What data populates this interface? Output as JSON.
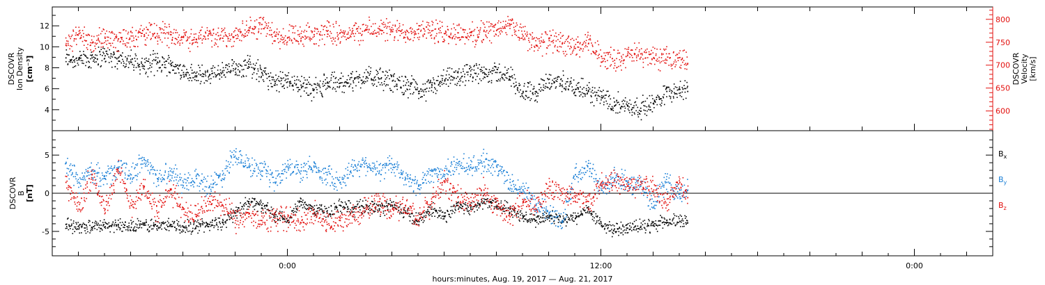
{
  "chart_data": [
    {
      "type": "scatter",
      "panel": "top",
      "x_unit": "hours since 2017-08-19 15:00",
      "xlim": [
        -9,
        27
      ],
      "x_ticks": [
        {
          "x": 0,
          "label": "0:00"
        },
        {
          "x": 12,
          "label": "12:00"
        },
        {
          "x": 24,
          "label": "0:00"
        }
      ],
      "ylabel": [
        "DSCOVR",
        "Ion Density",
        "[cm⁻³]"
      ],
      "ylim": [
        2,
        13.8
      ],
      "y_ticks": [
        4,
        6,
        8,
        10,
        12
      ],
      "y2label": [
        "DSCOVR",
        "Velocity",
        "[km/s]"
      ],
      "y2lim": [
        557,
        827
      ],
      "y2_ticks": [
        600,
        650,
        700,
        750,
        800
      ],
      "series": [
        {
          "axis": "left",
          "color": "#000000",
          "marker": "dot",
          "points": [
            [
              -8.5,
              9.0
            ],
            [
              -8.0,
              8.8
            ],
            [
              -7.5,
              9.0
            ],
            [
              -7.0,
              9.2
            ],
            [
              -6.5,
              9.0
            ],
            [
              -6.0,
              8.6
            ],
            [
              -5.5,
              8.2
            ],
            [
              -5.0,
              8.6
            ],
            [
              -4.5,
              8.4
            ],
            [
              -4.0,
              7.6
            ],
            [
              -3.5,
              7.2
            ],
            [
              -3.0,
              7.4
            ],
            [
              -2.5,
              7.6
            ],
            [
              -2.0,
              8.0
            ],
            [
              -1.5,
              8.4
            ],
            [
              -1.0,
              7.6
            ],
            [
              -0.5,
              6.4
            ],
            [
              0.0,
              7.0
            ],
            [
              0.5,
              6.4
            ],
            [
              1.0,
              6.0
            ],
            [
              1.5,
              6.6
            ],
            [
              2.0,
              6.6
            ],
            [
              2.5,
              6.8
            ],
            [
              3.0,
              7.2
            ],
            [
              3.5,
              7.0
            ],
            [
              4.0,
              6.8
            ],
            [
              4.5,
              6.4
            ],
            [
              5.0,
              5.8
            ],
            [
              5.5,
              6.2
            ],
            [
              6.0,
              6.8
            ],
            [
              6.5,
              7.2
            ],
            [
              7.0,
              7.4
            ],
            [
              7.5,
              7.6
            ],
            [
              8.0,
              7.6
            ],
            [
              8.5,
              7.2
            ],
            [
              9.0,
              5.8
            ],
            [
              9.5,
              5.8
            ],
            [
              10.0,
              6.6
            ],
            [
              10.5,
              6.8
            ],
            [
              11.0,
              6.0
            ],
            [
              11.5,
              5.8
            ],
            [
              12.0,
              5.2
            ],
            [
              12.5,
              4.8
            ],
            [
              13.0,
              4.4
            ],
            [
              13.5,
              4.2
            ],
            [
              14.0,
              4.6
            ],
            [
              14.5,
              5.8
            ],
            [
              15.0,
              6.0
            ],
            [
              15.3,
              5.8
            ]
          ]
        },
        {
          "axis": "right",
          "color": "#e3100e",
          "marker": "dot",
          "points": [
            [
              -8.5,
              745
            ],
            [
              -8.0,
              770
            ],
            [
              -7.5,
              750
            ],
            [
              -7.0,
              760
            ],
            [
              -6.5,
              758
            ],
            [
              -6.0,
              765
            ],
            [
              -5.5,
              768
            ],
            [
              -5.0,
              770
            ],
            [
              -4.5,
              768
            ],
            [
              -4.0,
              762
            ],
            [
              -3.5,
              758
            ],
            [
              -3.0,
              770
            ],
            [
              -2.5,
              760
            ],
            [
              -2.0,
              766
            ],
            [
              -1.5,
              778
            ],
            [
              -1.0,
              790
            ],
            [
              -0.5,
              765
            ],
            [
              0.0,
              762
            ],
            [
              0.5,
              760
            ],
            [
              1.0,
              768
            ],
            [
              1.5,
              775
            ],
            [
              2.0,
              772
            ],
            [
              2.5,
              770
            ],
            [
              3.0,
              778
            ],
            [
              3.5,
              780
            ],
            [
              4.0,
              775
            ],
            [
              4.5,
              772
            ],
            [
              5.0,
              780
            ],
            [
              5.5,
              776
            ],
            [
              6.0,
              770
            ],
            [
              6.5,
              772
            ],
            [
              7.0,
              766
            ],
            [
              7.5,
              775
            ],
            [
              8.0,
              778
            ],
            [
              8.5,
              790
            ],
            [
              9.0,
              765
            ],
            [
              9.5,
              745
            ],
            [
              10.0,
              755
            ],
            [
              10.5,
              748
            ],
            [
              11.0,
              738
            ],
            [
              11.5,
              748
            ],
            [
              12.0,
              720
            ],
            [
              12.5,
              712
            ],
            [
              13.0,
              722
            ],
            [
              13.5,
              726
            ],
            [
              14.0,
              718
            ],
            [
              14.5,
              712
            ],
            [
              15.0,
              718
            ],
            [
              15.3,
              705
            ]
          ]
        }
      ]
    },
    {
      "type": "scatter",
      "panel": "bottom",
      "x_unit": "hours since 2017-08-19 15:00",
      "xlim": [
        -9,
        27
      ],
      "ylabel": [
        "DSCOVR",
        "B",
        "[nT]"
      ],
      "ylim": [
        -8.2,
        8.2
      ],
      "y_ticks": [
        -5,
        0,
        5
      ],
      "zero_line": true,
      "xlabel": "hours:minutes, Aug. 19, 2017 — Aug. 21, 2017",
      "series": [
        {
          "name": "Bx",
          "sub": "x",
          "color": "#000000",
          "marker": "dot",
          "points": [
            [
              -8.5,
              -4.0
            ],
            [
              -8.0,
              -4.2
            ],
            [
              -7.5,
              -4.4
            ],
            [
              -7.0,
              -4.3
            ],
            [
              -6.5,
              -4.0
            ],
            [
              -6.0,
              -4.4
            ],
            [
              -5.5,
              -4.1
            ],
            [
              -5.0,
              -4.2
            ],
            [
              -4.5,
              -4.0
            ],
            [
              -4.0,
              -4.4
            ],
            [
              -3.5,
              -4.2
            ],
            [
              -3.0,
              -4.0
            ],
            [
              -2.5,
              -3.8
            ],
            [
              -2.0,
              -2.5
            ],
            [
              -1.5,
              -1.0
            ],
            [
              -1.0,
              -1.5
            ],
            [
              -0.5,
              -3.0
            ],
            [
              0.0,
              -3.5
            ],
            [
              0.5,
              -1.0
            ],
            [
              1.0,
              -2.0
            ],
            [
              1.5,
              -2.5
            ],
            [
              2.0,
              -1.5
            ],
            [
              2.5,
              -2.0
            ],
            [
              3.0,
              -1.5
            ],
            [
              3.5,
              -2.0
            ],
            [
              4.0,
              -1.5
            ],
            [
              4.5,
              -2.5
            ],
            [
              5.0,
              -3.5
            ],
            [
              5.5,
              -2.0
            ],
            [
              6.0,
              -3.0
            ],
            [
              6.5,
              -1.5
            ],
            [
              7.0,
              -2.0
            ],
            [
              7.5,
              -1.0
            ],
            [
              8.0,
              -1.5
            ],
            [
              8.5,
              -2.0
            ],
            [
              9.0,
              -3.0
            ],
            [
              9.5,
              -3.5
            ],
            [
              10.0,
              -3.0
            ],
            [
              10.5,
              -3.5
            ],
            [
              11.0,
              -3.2
            ],
            [
              11.5,
              -2.0
            ],
            [
              12.0,
              -4.2
            ],
            [
              12.5,
              -4.6
            ],
            [
              13.0,
              -4.5
            ],
            [
              13.5,
              -4.4
            ],
            [
              14.0,
              -4.2
            ],
            [
              14.5,
              -3.5
            ],
            [
              15.0,
              -3.6
            ],
            [
              15.3,
              -3.8
            ]
          ]
        },
        {
          "name": "By",
          "sub": "y",
          "color": "#1a7fd6",
          "marker": "dot",
          "points": [
            [
              -8.5,
              4.0
            ],
            [
              -8.0,
              1.5
            ],
            [
              -7.5,
              3.0
            ],
            [
              -7.0,
              2.0
            ],
            [
              -6.5,
              3.5
            ],
            [
              -6.0,
              2.5
            ],
            [
              -5.5,
              4.5
            ],
            [
              -5.0,
              2.0
            ],
            [
              -4.5,
              3.0
            ],
            [
              -4.0,
              1.5
            ],
            [
              -3.5,
              2.0
            ],
            [
              -3.0,
              1.0
            ],
            [
              -2.5,
              2.5
            ],
            [
              -2.0,
              5.5
            ],
            [
              -1.5,
              3.5
            ],
            [
              -1.0,
              3.0
            ],
            [
              -0.5,
              1.5
            ],
            [
              0.0,
              3.5
            ],
            [
              0.5,
              3.0
            ],
            [
              1.0,
              3.5
            ],
            [
              1.5,
              2.5
            ],
            [
              2.0,
              1.5
            ],
            [
              2.5,
              3.5
            ],
            [
              3.0,
              4.0
            ],
            [
              3.5,
              3.0
            ],
            [
              4.0,
              3.8
            ],
            [
              4.5,
              2.0
            ],
            [
              5.0,
              1.0
            ],
            [
              5.5,
              3.0
            ],
            [
              6.0,
              2.5
            ],
            [
              6.5,
              4.0
            ],
            [
              7.0,
              3.5
            ],
            [
              7.5,
              4.2
            ],
            [
              8.0,
              3.5
            ],
            [
              8.5,
              1.5
            ],
            [
              9.0,
              0.5
            ],
            [
              9.5,
              -1.5
            ],
            [
              10.0,
              -2.5
            ],
            [
              10.5,
              -3.5
            ],
            [
              11.0,
              2.5
            ],
            [
              11.5,
              4.0
            ],
            [
              12.0,
              0.5
            ],
            [
              12.5,
              2.0
            ],
            [
              13.0,
              1.5
            ],
            [
              13.5,
              1.0
            ],
            [
              14.0,
              -1.0
            ],
            [
              14.5,
              1.5
            ],
            [
              15.0,
              0.0
            ],
            [
              15.3,
              0.5
            ]
          ]
        },
        {
          "name": "Bz",
          "sub": "z",
          "color": "#e3100e",
          "marker": "dot",
          "points": [
            [
              -8.5,
              1.5
            ],
            [
              -8.0,
              -2.0
            ],
            [
              -7.5,
              2.5
            ],
            [
              -7.0,
              -2.0
            ],
            [
              -6.5,
              3.0
            ],
            [
              -6.0,
              -1.5
            ],
            [
              -5.5,
              1.0
            ],
            [
              -5.0,
              -2.5
            ],
            [
              -4.5,
              0.5
            ],
            [
              -4.0,
              -2.0
            ],
            [
              -3.5,
              -3.0
            ],
            [
              -3.0,
              -1.0
            ],
            [
              -2.5,
              -1.5
            ],
            [
              -2.0,
              -3.5
            ],
            [
              -1.5,
              -3.0
            ],
            [
              -1.0,
              -3.5
            ],
            [
              -0.5,
              -3.2
            ],
            [
              0.0,
              -3.0
            ],
            [
              0.5,
              -3.8
            ],
            [
              1.0,
              -2.5
            ],
            [
              1.5,
              -4.0
            ],
            [
              2.0,
              -3.5
            ],
            [
              2.5,
              -3.0
            ],
            [
              3.0,
              -2.0
            ],
            [
              3.5,
              -1.0
            ],
            [
              4.0,
              -2.0
            ],
            [
              4.5,
              -1.5
            ],
            [
              5.0,
              -3.5
            ],
            [
              5.5,
              -1.0
            ],
            [
              6.0,
              1.5
            ],
            [
              6.5,
              -0.5
            ],
            [
              7.0,
              -1.5
            ],
            [
              7.5,
              0.5
            ],
            [
              8.0,
              -2.0
            ],
            [
              8.5,
              -3.0
            ],
            [
              9.0,
              -1.0
            ],
            [
              9.5,
              -2.0
            ],
            [
              10.0,
              1.0
            ],
            [
              10.5,
              0.0
            ],
            [
              11.0,
              -0.5
            ],
            [
              11.5,
              -1.0
            ],
            [
              12.0,
              1.5
            ],
            [
              12.5,
              1.8
            ],
            [
              13.0,
              1.0
            ],
            [
              13.5,
              1.2
            ],
            [
              14.0,
              0.5
            ],
            [
              14.5,
              -1.5
            ],
            [
              15.0,
              1.5
            ],
            [
              15.3,
              -0.5
            ]
          ]
        }
      ]
    }
  ]
}
